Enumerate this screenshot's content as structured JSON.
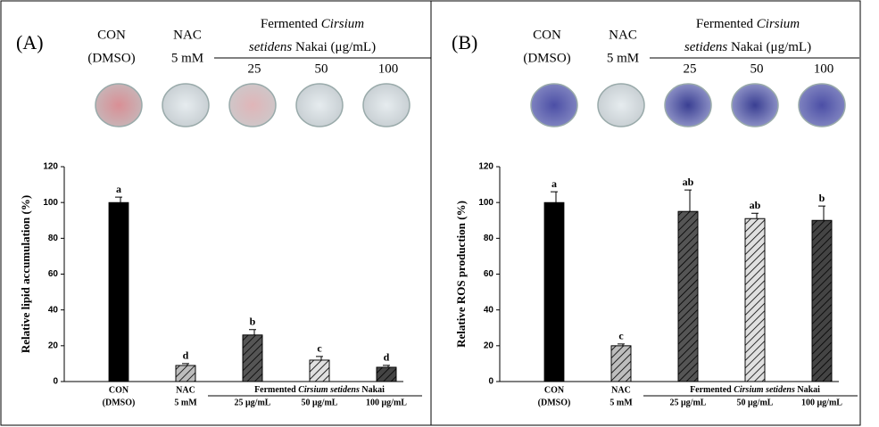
{
  "chart_data": [
    {
      "type": "bar",
      "panel_label": "(A)",
      "header": {
        "con": [
          "CON",
          "(DMSO)"
        ],
        "nac": [
          "NAC",
          "5 mM"
        ],
        "group": [
          "Fermented ",
          "Cirsium",
          "setidens",
          " Nakai (μg/mL)"
        ],
        "doses": [
          "25",
          "50",
          "100"
        ]
      },
      "ylabel": "Relative lipid accumulation (%)",
      "categories": [
        [
          "CON",
          "(DMSO)"
        ],
        [
          "NAC",
          "5 mM"
        ],
        [
          "25 μg/mL"
        ],
        [
          "50 μg/mL"
        ],
        [
          "100 μg/mL"
        ]
      ],
      "group_label": [
        "Fermented ",
        "Cirsium setidens",
        " Nakai"
      ],
      "values": [
        100,
        9,
        26,
        12,
        8
      ],
      "errors": [
        3,
        1,
        3,
        2,
        1
      ],
      "letters": [
        "a",
        "d",
        "b",
        "c",
        "d"
      ],
      "colors": [
        "#000000",
        "#bdbdbd",
        "#555555",
        "#e0e0e0",
        "#444444"
      ],
      "hatch": [
        false,
        true,
        true,
        true,
        true
      ],
      "ylim": [
        0,
        120
      ],
      "yticks": [
        0,
        20,
        40,
        60,
        80,
        100,
        120
      ]
    },
    {
      "type": "bar",
      "panel_label": "(B)",
      "header": {
        "con": [
          "CON",
          "(DMSO)"
        ],
        "nac": [
          "NAC",
          "5 mM"
        ],
        "group": [
          "Fermented ",
          "Cirsium",
          "setidens",
          " Nakai (μg/mL)"
        ],
        "doses": [
          "25",
          "50",
          "100"
        ]
      },
      "ylabel": "Relative ROS production (%)",
      "categories": [
        [
          "CON",
          "(DMSO)"
        ],
        [
          "NAC",
          "5 mM"
        ],
        [
          "25 μg/mL"
        ],
        [
          "50 μg/mL"
        ],
        [
          "100 μg/mL"
        ]
      ],
      "group_label": [
        "Fermented ",
        "Cirsium setidens",
        " Nakai"
      ],
      "values": [
        100,
        20,
        95,
        91,
        90
      ],
      "errors": [
        6,
        1,
        12,
        3,
        8
      ],
      "letters": [
        "a",
        "c",
        "ab",
        "ab",
        "b"
      ],
      "colors": [
        "#000000",
        "#bdbdbd",
        "#555555",
        "#e0e0e0",
        "#444444"
      ],
      "hatch": [
        false,
        true,
        true,
        true,
        true
      ],
      "ylim": [
        0,
        120
      ],
      "yticks": [
        0,
        20,
        40,
        60,
        80,
        100,
        120
      ]
    }
  ]
}
